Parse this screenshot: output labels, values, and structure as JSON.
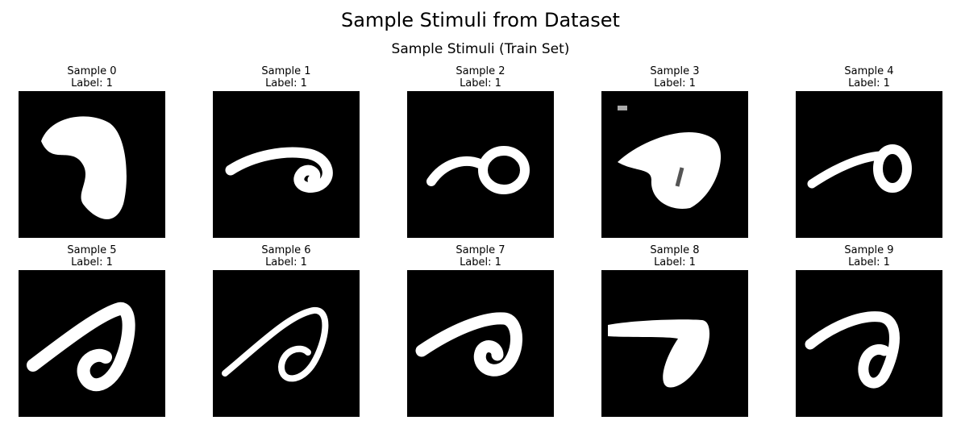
{
  "figure": {
    "title": "Sample Stimuli from Dataset",
    "subtitle": "Sample Stimuli (Train Set)"
  },
  "samples": [
    {
      "name": "Sample 0",
      "label": "Label: 1"
    },
    {
      "name": "Sample 1",
      "label": "Label: 1"
    },
    {
      "name": "Sample 2",
      "label": "Label: 1"
    },
    {
      "name": "Sample 3",
      "label": "Label: 1"
    },
    {
      "name": "Sample 4",
      "label": "Label: 1"
    },
    {
      "name": "Sample 5",
      "label": "Label: 1"
    },
    {
      "name": "Sample 6",
      "label": "Label: 1"
    },
    {
      "name": "Sample 7",
      "label": "Label: 1"
    },
    {
      "name": "Sample 8",
      "label": "Label: 1"
    },
    {
      "name": "Sample 9",
      "label": "Label: 1"
    }
  ],
  "colors": {
    "background": "#000000",
    "stroke": "#ffffff"
  }
}
